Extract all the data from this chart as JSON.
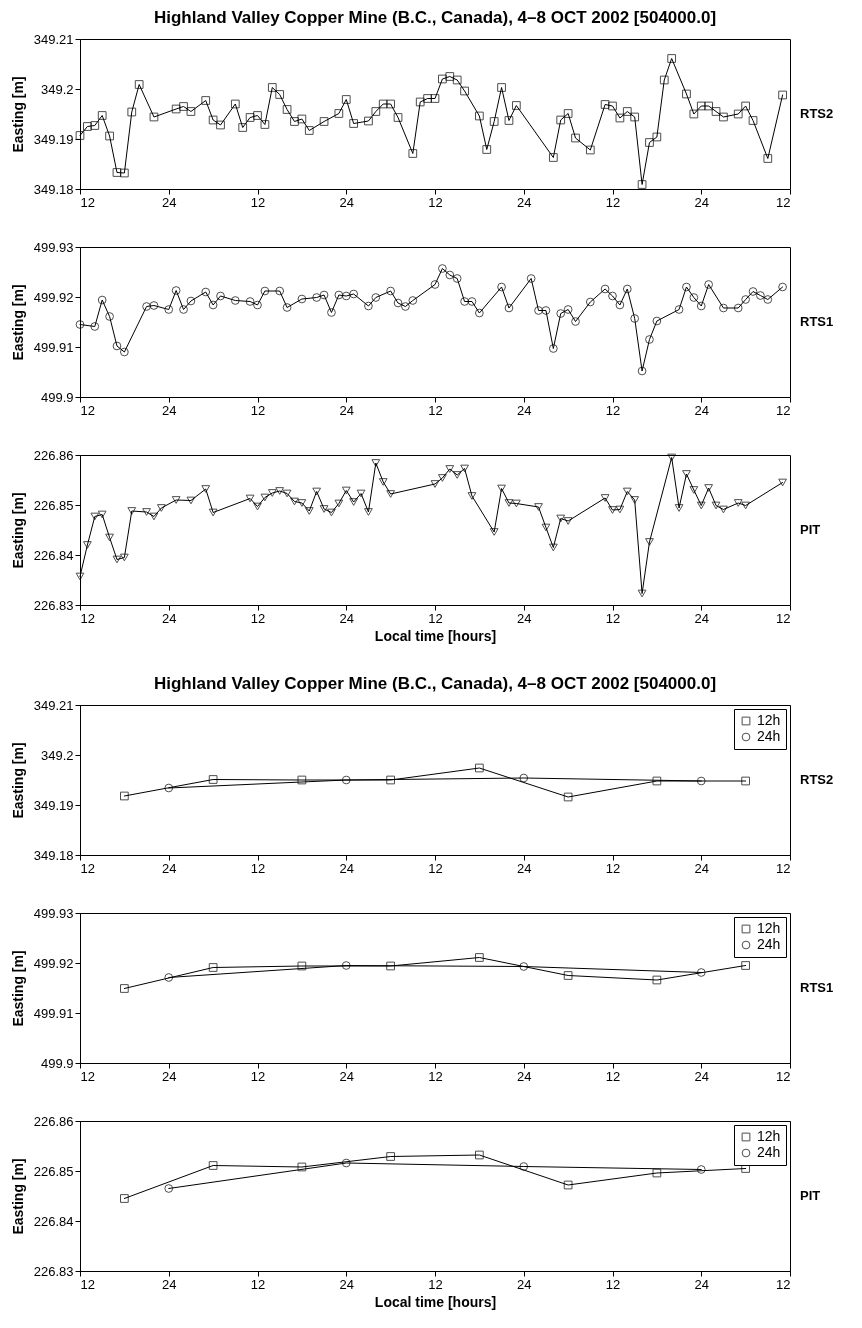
{
  "chart_data": [
    {
      "type": "line",
      "title": "Highland Valley Copper Mine (B.C., Canada), 4–8 OCT 2002 [504000.0]",
      "ylabel": "Easting [m]",
      "annotations": [
        "RTS2"
      ],
      "xlim": [
        "2002-10-04T12:00",
        "2002-10-08T12:00"
      ],
      "xticks": [
        {
          "value": "2002-10-04T12:00",
          "label": "12"
        },
        {
          "value": "2002-10-05T00:00",
          "label": "24"
        },
        {
          "value": "2002-10-05T12:00",
          "label": "12"
        },
        {
          "value": "2002-10-06T00:00",
          "label": "24"
        },
        {
          "value": "2002-10-06T12:00",
          "label": "12"
        },
        {
          "value": "2002-10-07T00:00",
          "label": "24"
        },
        {
          "value": "2002-10-07T12:00",
          "label": "12"
        },
        {
          "value": "2002-10-08T00:00",
          "label": "24"
        },
        {
          "value": "2002-10-08T12:00",
          "label": "12"
        }
      ],
      "ylim": [
        349.18,
        349.21
      ],
      "yticks": [
        349.18,
        349.19,
        349.2,
        349.21
      ],
      "series": [
        {
          "color": "#000000",
          "marker": "square",
          "x": [
            "2002-10-04T12:00",
            "2002-10-04T13:00",
            "2002-10-04T14:00",
            "2002-10-04T15:00",
            "2002-10-04T16:00",
            "2002-10-04T17:00",
            "2002-10-04T18:00",
            "2002-10-04T19:00",
            "2002-10-04T20:00",
            "2002-10-04T22:00",
            "2002-10-05T01:00",
            "2002-10-05T02:00",
            "2002-10-05T03:00",
            "2002-10-05T05:00",
            "2002-10-05T06:00",
            "2002-10-05T07:00",
            "2002-10-05T09:00",
            "2002-10-05T10:00",
            "2002-10-05T11:00",
            "2002-10-05T12:00",
            "2002-10-05T13:00",
            "2002-10-05T14:00",
            "2002-10-05T15:00",
            "2002-10-05T16:00",
            "2002-10-05T17:00",
            "2002-10-05T18:00",
            "2002-10-05T19:00",
            "2002-10-05T21:00",
            "2002-10-05T23:00",
            "2002-10-06T00:00",
            "2002-10-06T01:00",
            "2002-10-06T03:00",
            "2002-10-06T04:00",
            "2002-10-06T05:00",
            "2002-10-06T06:00",
            "2002-10-06T07:00",
            "2002-10-06T09:00",
            "2002-10-06T10:00",
            "2002-10-06T11:00",
            "2002-10-06T12:00",
            "2002-10-06T13:00",
            "2002-10-06T14:00",
            "2002-10-06T15:00",
            "2002-10-06T16:00",
            "2002-10-06T18:00",
            "2002-10-06T19:00",
            "2002-10-06T20:00",
            "2002-10-06T21:00",
            "2002-10-06T22:00",
            "2002-10-06T23:00",
            "2002-10-07T04:00",
            "2002-10-07T05:00",
            "2002-10-07T06:00",
            "2002-10-07T07:00",
            "2002-10-07T09:00",
            "2002-10-07T11:00",
            "2002-10-07T12:00",
            "2002-10-07T13:00",
            "2002-10-07T14:00",
            "2002-10-07T15:00",
            "2002-10-07T16:00",
            "2002-10-07T17:00",
            "2002-10-07T18:00",
            "2002-10-07T19:00",
            "2002-10-07T20:00",
            "2002-10-07T22:00",
            "2002-10-07T23:00",
            "2002-10-08T00:00",
            "2002-10-08T01:00",
            "2002-10-08T02:00",
            "2002-10-08T03:00",
            "2002-10-08T05:00",
            "2002-10-08T06:00",
            "2002-10-08T07:00",
            "2002-10-08T09:00",
            "2002-10-08T11:00"
          ],
          "values": [
            349.1907,
            349.1925,
            349.1927,
            349.1947,
            349.1906,
            349.1833,
            349.1832,
            349.1954,
            349.2009,
            349.1944,
            349.196,
            349.1965,
            349.1955,
            349.1977,
            349.1938,
            349.1928,
            349.197,
            349.1923,
            349.1943,
            349.1947,
            349.1929,
            349.2003,
            349.1989,
            349.1959,
            349.1935,
            349.194,
            349.1917,
            349.1935,
            349.1951,
            349.1979,
            349.1931,
            349.1936,
            349.1955,
            349.197,
            349.197,
            349.1943,
            349.1871,
            349.1974,
            349.1981,
            349.1981,
            349.202,
            349.2025,
            349.2018,
            349.1996,
            349.1946,
            349.1879,
            349.1935,
            349.2003,
            349.1937,
            349.1967,
            349.1863,
            349.1938,
            349.1951,
            349.1902,
            349.1878,
            349.1969,
            349.1966,
            349.1942,
            349.1955,
            349.1944,
            349.1809,
            349.1893,
            349.1904,
            349.2018,
            349.2061,
            349.199,
            349.195,
            349.1966,
            349.1966,
            349.1955,
            349.1944,
            349.195,
            349.1966,
            349.1937,
            349.1861,
            349.1988
          ]
        }
      ]
    },
    {
      "type": "line",
      "ylabel": "Easting [m]",
      "annotations": [
        "RTS1"
      ],
      "xlim": [
        "2002-10-04T12:00",
        "2002-10-08T12:00"
      ],
      "xticks": [
        {
          "value": "2002-10-04T12:00",
          "label": "12"
        },
        {
          "value": "2002-10-05T00:00",
          "label": "24"
        },
        {
          "value": "2002-10-05T12:00",
          "label": "12"
        },
        {
          "value": "2002-10-06T00:00",
          "label": "24"
        },
        {
          "value": "2002-10-06T12:00",
          "label": "12"
        },
        {
          "value": "2002-10-07T00:00",
          "label": "24"
        },
        {
          "value": "2002-10-07T12:00",
          "label": "12"
        },
        {
          "value": "2002-10-08T00:00",
          "label": "24"
        },
        {
          "value": "2002-10-08T12:00",
          "label": "12"
        }
      ],
      "ylim": [
        499.9,
        499.93
      ],
      "yticks": [
        499.9,
        499.91,
        499.92,
        499.93
      ],
      "series": [
        {
          "color": "#000000",
          "marker": "circle",
          "x": [
            "2002-10-04T12:00",
            "2002-10-04T14:00",
            "2002-10-04T15:00",
            "2002-10-04T16:00",
            "2002-10-04T17:00",
            "2002-10-04T18:00",
            "2002-10-04T21:00",
            "2002-10-04T22:00",
            "2002-10-05T00:00",
            "2002-10-05T01:00",
            "2002-10-05T02:00",
            "2002-10-05T03:00",
            "2002-10-05T05:00",
            "2002-10-05T06:00",
            "2002-10-05T07:00",
            "2002-10-05T09:00",
            "2002-10-05T11:00",
            "2002-10-05T12:00",
            "2002-10-05T13:00",
            "2002-10-05T15:00",
            "2002-10-05T16:00",
            "2002-10-05T18:00",
            "2002-10-05T20:00",
            "2002-10-05T21:00",
            "2002-10-05T22:00",
            "2002-10-05T23:00",
            "2002-10-06T00:00",
            "2002-10-06T01:00",
            "2002-10-06T03:00",
            "2002-10-06T04:00",
            "2002-10-06T06:00",
            "2002-10-06T07:00",
            "2002-10-06T08:00",
            "2002-10-06T09:00",
            "2002-10-06T12:00",
            "2002-10-06T13:00",
            "2002-10-06T14:00",
            "2002-10-06T15:00",
            "2002-10-06T16:00",
            "2002-10-06T17:00",
            "2002-10-06T18:00",
            "2002-10-06T21:00",
            "2002-10-06T22:00",
            "2002-10-07T01:00",
            "2002-10-07T02:00",
            "2002-10-07T03:00",
            "2002-10-07T04:00",
            "2002-10-07T05:00",
            "2002-10-07T06:00",
            "2002-10-07T07:00",
            "2002-10-07T09:00",
            "2002-10-07T11:00",
            "2002-10-07T12:00",
            "2002-10-07T13:00",
            "2002-10-07T14:00",
            "2002-10-07T15:00",
            "2002-10-07T16:00",
            "2002-10-07T17:00",
            "2002-10-07T18:00",
            "2002-10-07T21:00",
            "2002-10-07T22:00",
            "2002-10-07T23:00",
            "2002-10-08T00:00",
            "2002-10-08T01:00",
            "2002-10-08T03:00",
            "2002-10-08T05:00",
            "2002-10-08T06:00",
            "2002-10-08T07:00",
            "2002-10-08T08:00",
            "2002-10-08T09:00",
            "2002-10-08T11:00"
          ],
          "values": [
            499.9145,
            499.9141,
            499.9194,
            499.9161,
            499.9102,
            499.909,
            499.9181,
            499.9183,
            499.9175,
            499.9213,
            499.9175,
            499.9192,
            499.921,
            499.9184,
            499.9202,
            499.9193,
            499.9191,
            499.9184,
            499.9212,
            499.9212,
            499.9179,
            499.9196,
            499.9199,
            499.9204,
            499.9169,
            499.9204,
            499.9202,
            499.9206,
            499.9182,
            499.9199,
            499.9212,
            499.9188,
            499.9181,
            499.9193,
            499.9225,
            499.9257,
            499.9244,
            499.9237,
            499.9191,
            499.9191,
            499.9168,
            499.922,
            499.9178,
            499.9237,
            499.9173,
            499.9173,
            499.9097,
            499.9167,
            499.9175,
            499.9151,
            499.919,
            499.9216,
            499.9202,
            499.9184,
            499.9216,
            499.9157,
            499.9052,
            499.9115,
            499.9152,
            499.9175,
            499.922,
            499.9199,
            499.9182,
            499.9225,
            499.9178,
            499.9178,
            499.9195,
            499.9211,
            499.9203,
            499.9195,
            499.922
          ]
        }
      ]
    },
    {
      "type": "line",
      "ylabel": "Easting [m]",
      "xlabel": "Local time [hours]",
      "annotations": [
        "PIT"
      ],
      "xlim": [
        "2002-10-04T12:00",
        "2002-10-08T12:00"
      ],
      "xticks": [
        {
          "value": "2002-10-04T12:00",
          "label": "12"
        },
        {
          "value": "2002-10-05T00:00",
          "label": "24"
        },
        {
          "value": "2002-10-05T12:00",
          "label": "12"
        },
        {
          "value": "2002-10-06T00:00",
          "label": "24"
        },
        {
          "value": "2002-10-06T12:00",
          "label": "12"
        },
        {
          "value": "2002-10-07T00:00",
          "label": "24"
        },
        {
          "value": "2002-10-07T12:00",
          "label": "12"
        },
        {
          "value": "2002-10-08T00:00",
          "label": "24"
        },
        {
          "value": "2002-10-08T12:00",
          "label": "12"
        }
      ],
      "ylim": [
        226.83,
        226.86
      ],
      "yticks": [
        226.83,
        226.84,
        226.85,
        226.86
      ],
      "series": [
        {
          "color": "#000000",
          "marker": "triangle",
          "x": [
            "2002-10-04T12:00",
            "2002-10-04T13:00",
            "2002-10-04T14:00",
            "2002-10-04T15:00",
            "2002-10-04T16:00",
            "2002-10-04T17:00",
            "2002-10-04T18:00",
            "2002-10-04T19:00",
            "2002-10-04T21:00",
            "2002-10-04T22:00",
            "2002-10-04T23:00",
            "2002-10-05T01:00",
            "2002-10-05T03:00",
            "2002-10-05T05:00",
            "2002-10-05T06:00",
            "2002-10-05T11:00",
            "2002-10-05T12:00",
            "2002-10-05T13:00",
            "2002-10-05T14:00",
            "2002-10-05T15:00",
            "2002-10-05T16:00",
            "2002-10-05T17:00",
            "2002-10-05T18:00",
            "2002-10-05T19:00",
            "2002-10-05T20:00",
            "2002-10-05T21:00",
            "2002-10-05T22:00",
            "2002-10-05T23:00",
            "2002-10-06T00:00",
            "2002-10-06T01:00",
            "2002-10-06T02:00",
            "2002-10-06T03:00",
            "2002-10-06T04:00",
            "2002-10-06T05:00",
            "2002-10-06T06:00",
            "2002-10-06T12:00",
            "2002-10-06T13:00",
            "2002-10-06T14:00",
            "2002-10-06T15:00",
            "2002-10-06T16:00",
            "2002-10-06T17:00",
            "2002-10-06T20:00",
            "2002-10-06T21:00",
            "2002-10-06T22:00",
            "2002-10-06T23:00",
            "2002-10-07T02:00",
            "2002-10-07T03:00",
            "2002-10-07T04:00",
            "2002-10-07T05:00",
            "2002-10-07T06:00",
            "2002-10-07T11:00",
            "2002-10-07T12:00",
            "2002-10-07T13:00",
            "2002-10-07T14:00",
            "2002-10-07T15:00",
            "2002-10-07T16:00",
            "2002-10-07T17:00",
            "2002-10-07T20:00",
            "2002-10-07T21:00",
            "2002-10-07T22:00",
            "2002-10-07T23:00",
            "2002-10-08T00:00",
            "2002-10-08T01:00",
            "2002-10-08T02:00",
            "2002-10-08T03:00",
            "2002-10-08T05:00",
            "2002-10-08T06:00",
            "2002-10-08T11:00"
          ],
          "values": [
            226.8357,
            226.842,
            226.8477,
            226.8481,
            226.8435,
            226.8391,
            226.8395,
            226.8488,
            226.8486,
            226.8477,
            226.8494,
            226.851,
            226.8509,
            226.8532,
            226.8485,
            226.8513,
            226.8497,
            226.8515,
            226.8524,
            226.8528,
            226.8523,
            226.8507,
            226.8504,
            226.8488,
            226.8527,
            226.8492,
            226.8485,
            226.8503,
            226.8529,
            226.8506,
            226.8523,
            226.8486,
            226.8584,
            226.8546,
            226.8522,
            226.8542,
            226.8554,
            226.8572,
            226.856,
            226.8573,
            226.8518,
            226.8446,
            226.8533,
            226.8504,
            226.8503,
            226.8496,
            226.8455,
            226.8415,
            226.8473,
            226.8468,
            226.8514,
            226.849,
            226.8491,
            226.8527,
            226.851,
            226.8323,
            226.8426,
            226.8595,
            226.8494,
            226.8562,
            226.853,
            226.8499,
            226.8534,
            226.8499,
            226.8491,
            226.8504,
            226.8499,
            226.8545
          ]
        }
      ]
    },
    {
      "type": "line",
      "title": "Highland Valley Copper Mine (B.C., Canada), 4–8 OCT 2002 [504000.0]",
      "ylabel": "Easting [m]",
      "annotations": [
        "RTS2"
      ],
      "legend": "top right",
      "xlim": [
        "2002-10-04T12:00",
        "2002-10-08T12:00"
      ],
      "xticks": [
        {
          "value": "2002-10-04T12:00",
          "label": "12"
        },
        {
          "value": "2002-10-05T00:00",
          "label": "24"
        },
        {
          "value": "2002-10-05T12:00",
          "label": "12"
        },
        {
          "value": "2002-10-06T00:00",
          "label": "24"
        },
        {
          "value": "2002-10-06T12:00",
          "label": "12"
        },
        {
          "value": "2002-10-07T00:00",
          "label": "24"
        },
        {
          "value": "2002-10-07T12:00",
          "label": "12"
        },
        {
          "value": "2002-10-08T00:00",
          "label": "24"
        },
        {
          "value": "2002-10-08T12:00",
          "label": "12"
        }
      ],
      "ylim": [
        349.18,
        349.21
      ],
      "yticks": [
        349.18,
        349.19,
        349.2,
        349.21
      ],
      "series": [
        {
          "name": "12h",
          "color": "#000000",
          "marker": "square",
          "x": [
            "2002-10-04T18:00",
            "2002-10-05T06:00",
            "2002-10-05T18:00",
            "2002-10-06T06:00",
            "2002-10-06T18:00",
            "2002-10-07T06:00",
            "2002-10-07T18:00",
            "2002-10-08T06:00"
          ],
          "values": [
            349.1918,
            349.1951,
            349.195,
            349.195,
            349.1974,
            349.1916,
            349.1948,
            349.1948
          ]
        },
        {
          "name": "24h",
          "color": "#000000",
          "marker": "circle",
          "x": [
            "2002-10-05T00:00",
            "2002-10-06T00:00",
            "2002-10-07T00:00",
            "2002-10-08T00:00"
          ],
          "values": [
            349.1934,
            349.195,
            349.1954,
            349.1948
          ]
        }
      ]
    },
    {
      "type": "line",
      "ylabel": "Easting [m]",
      "annotations": [
        "RTS1"
      ],
      "legend": "top right",
      "xlim": [
        "2002-10-04T12:00",
        "2002-10-08T12:00"
      ],
      "xticks": [
        {
          "value": "2002-10-04T12:00",
          "label": "12"
        },
        {
          "value": "2002-10-05T00:00",
          "label": "24"
        },
        {
          "value": "2002-10-05T12:00",
          "label": "12"
        },
        {
          "value": "2002-10-06T00:00",
          "label": "24"
        },
        {
          "value": "2002-10-06T12:00",
          "label": "12"
        },
        {
          "value": "2002-10-07T00:00",
          "label": "24"
        },
        {
          "value": "2002-10-07T12:00",
          "label": "12"
        },
        {
          "value": "2002-10-08T00:00",
          "label": "24"
        },
        {
          "value": "2002-10-08T12:00",
          "label": "12"
        }
      ],
      "ylim": [
        499.9,
        499.93
      ],
      "yticks": [
        499.9,
        499.91,
        499.92,
        499.93
      ],
      "series": [
        {
          "name": "12h",
          "color": "#000000",
          "marker": "square",
          "x": [
            "2002-10-04T18:00",
            "2002-10-05T06:00",
            "2002-10-05T18:00",
            "2002-10-06T06:00",
            "2002-10-06T18:00",
            "2002-10-07T06:00",
            "2002-10-07T18:00",
            "2002-10-08T06:00"
          ],
          "values": [
            499.9149,
            499.9191,
            499.9194,
            499.9194,
            499.9211,
            499.9175,
            499.9166,
            499.9195
          ]
        },
        {
          "name": "24h",
          "color": "#000000",
          "marker": "circle",
          "x": [
            "2002-10-05T00:00",
            "2002-10-06T00:00",
            "2002-10-07T00:00",
            "2002-10-08T00:00"
          ],
          "values": [
            499.9171,
            499.9195,
            499.9193,
            499.9181
          ]
        }
      ]
    },
    {
      "type": "line",
      "ylabel": "Easting [m]",
      "xlabel": "Local time [hours]",
      "annotations": [
        "PIT"
      ],
      "legend": "top right",
      "xlim": [
        "2002-10-04T12:00",
        "2002-10-08T12:00"
      ],
      "xticks": [
        {
          "value": "2002-10-04T12:00",
          "label": "12"
        },
        {
          "value": "2002-10-05T00:00",
          "label": "24"
        },
        {
          "value": "2002-10-05T12:00",
          "label": "12"
        },
        {
          "value": "2002-10-06T00:00",
          "label": "24"
        },
        {
          "value": "2002-10-06T12:00",
          "label": "12"
        },
        {
          "value": "2002-10-07T00:00",
          "label": "24"
        },
        {
          "value": "2002-10-07T12:00",
          "label": "12"
        },
        {
          "value": "2002-10-08T00:00",
          "label": "24"
        },
        {
          "value": "2002-10-08T12:00",
          "label": "12"
        }
      ],
      "ylim": [
        226.83,
        226.86
      ],
      "yticks": [
        226.83,
        226.84,
        226.85,
        226.86
      ],
      "series": [
        {
          "name": "12h",
          "color": "#000000",
          "marker": "square",
          "x": [
            "2002-10-04T18:00",
            "2002-10-05T06:00",
            "2002-10-05T18:00",
            "2002-10-06T06:00",
            "2002-10-06T18:00",
            "2002-10-07T06:00",
            "2002-10-07T18:00",
            "2002-10-08T06:00"
          ],
          "values": [
            226.8445,
            226.8511,
            226.8508,
            226.8529,
            226.8532,
            226.8472,
            226.8496,
            226.8505
          ]
        },
        {
          "name": "24h",
          "color": "#000000",
          "marker": "circle",
          "x": [
            "2002-10-05T00:00",
            "2002-10-06T00:00",
            "2002-10-07T00:00",
            "2002-10-08T00:00"
          ],
          "values": [
            226.8465,
            226.8516,
            226.8509,
            226.8503
          ]
        }
      ]
    }
  ]
}
